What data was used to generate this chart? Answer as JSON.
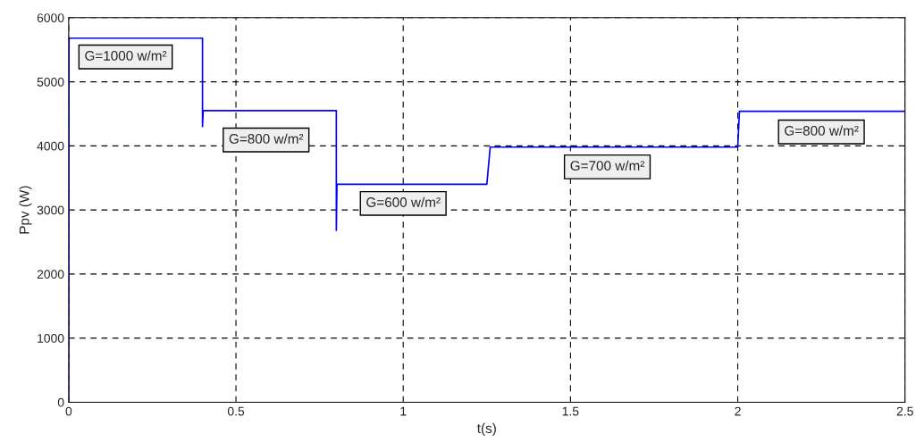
{
  "chart_data": {
    "type": "line",
    "xlabel": "t(s)",
    "ylabel": "Ppv (W)",
    "x": [
      0,
      0.001,
      0.4,
      0.4,
      0.402,
      0.8,
      0.8,
      0.802,
      1.25,
      1.26,
      2.0,
      2.005,
      2.5
    ],
    "series": [
      {
        "color": "#0000ff",
        "values": [
          0,
          5680,
          5680,
          4300,
          4550,
          4550,
          2680,
          3400,
          3400,
          3980,
          3980,
          4540,
          4540
        ]
      }
    ],
    "xlim": [
      0,
      2.5
    ],
    "xticks": [
      0,
      0.5,
      1,
      1.5,
      2,
      2.5
    ],
    "ylim": [
      0,
      6000
    ],
    "yticks": [
      0,
      1000,
      2000,
      3000,
      4000,
      5000,
      6000
    ],
    "grid": true,
    "line_style": "solid",
    "marker": "none",
    "annotations": [
      "G=1000 w/m²",
      "G=800 w/m²",
      "G=600 w/m²",
      "G=700 w/m²",
      "G=800 w/m²"
    ]
  }
}
